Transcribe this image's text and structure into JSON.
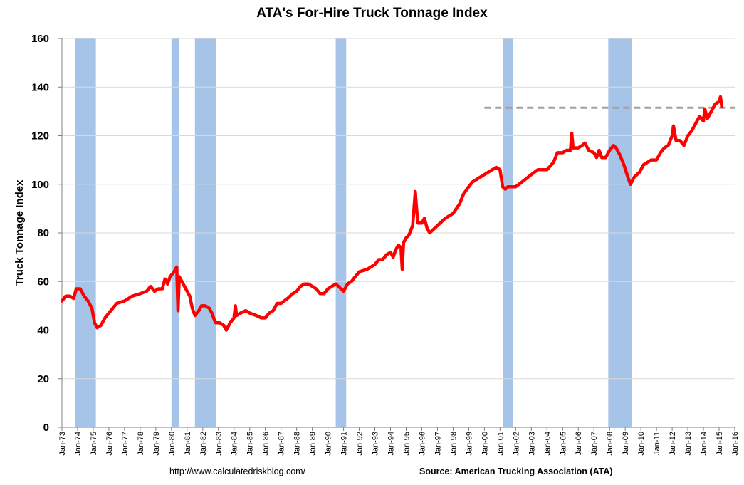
{
  "chart_data": {
    "type": "line",
    "title": "ATA's For-Hire Truck Tonnage Index",
    "ylabel": "Truck Tonnage Index",
    "xlabel": "",
    "ylim": [
      0,
      160
    ],
    "yticks": [
      0,
      20,
      40,
      60,
      80,
      100,
      120,
      140,
      160
    ],
    "grid": true,
    "xticks": [
      "Jan-73",
      "Jan-74",
      "Jan-75",
      "Jan-76",
      "Jan-77",
      "Jan-78",
      "Jan-79",
      "Jan-80",
      "Jan-81",
      "Jan-82",
      "Jan-83",
      "Jan-84",
      "Jan-85",
      "Jan-86",
      "Jan-87",
      "Jan-88",
      "Jan-89",
      "Jan-90",
      "Jan-91",
      "Jan-92",
      "Jan-93",
      "Jan-94",
      "Jan-95",
      "Jan-96",
      "Jan-97",
      "Jan-98",
      "Jan-99",
      "Jan-00",
      "Jan-01",
      "Jan-02",
      "Jan-03",
      "Jan-04",
      "Jan-05",
      "Jan-06",
      "Jan-07",
      "Jan-08",
      "Jan-09",
      "Jan-10",
      "Jan-11",
      "Jan-12",
      "Jan-13",
      "Jan-14",
      "Jan-15",
      "Jan-16"
    ],
    "xlim": [
      "1973-01",
      "2016-01"
    ],
    "recession_color": "#a6c4e8",
    "recessions": [
      [
        "1973-11",
        "1975-03"
      ],
      [
        "1980-01",
        "1980-07"
      ],
      [
        "1981-07",
        "1982-11"
      ],
      [
        "1990-07",
        "1991-03"
      ],
      [
        "2001-03",
        "2001-11"
      ],
      [
        "2007-12",
        "2009-06"
      ]
    ],
    "reference_line": {
      "y": 131.5,
      "start": "2000-01",
      "end": "2016-01",
      "style": "dashed",
      "color": "#a0a0a0"
    },
    "series": [
      {
        "color": "#ff0000",
        "points": [
          [
            "1973-01",
            52
          ],
          [
            "1973-04",
            54
          ],
          [
            "1973-07",
            54
          ],
          [
            "1973-10",
            53
          ],
          [
            "1973-12",
            57
          ],
          [
            "1974-03",
            57
          ],
          [
            "1974-06",
            54
          ],
          [
            "1974-09",
            52
          ],
          [
            "1974-12",
            49
          ],
          [
            "1975-02",
            43
          ],
          [
            "1975-04",
            41
          ],
          [
            "1975-07",
            42
          ],
          [
            "1975-10",
            45
          ],
          [
            "1976-01",
            47
          ],
          [
            "1976-04",
            49
          ],
          [
            "1976-07",
            51
          ],
          [
            "1977-01",
            52
          ],
          [
            "1977-07",
            54
          ],
          [
            "1978-01",
            55
          ],
          [
            "1978-06",
            56
          ],
          [
            "1978-09",
            58
          ],
          [
            "1978-12",
            56
          ],
          [
            "1979-03",
            57
          ],
          [
            "1979-06",
            57
          ],
          [
            "1979-08",
            61
          ],
          [
            "1979-10",
            59
          ],
          [
            "1979-12",
            62
          ],
          [
            "1980-03",
            64
          ],
          [
            "1980-05",
            66
          ],
          [
            "1980-06",
            48
          ],
          [
            "1980-07",
            62
          ],
          [
            "1980-09",
            60
          ],
          [
            "1980-12",
            57
          ],
          [
            "1981-03",
            54
          ],
          [
            "1981-05",
            49
          ],
          [
            "1981-07",
            46
          ],
          [
            "1981-10",
            48
          ],
          [
            "1981-12",
            50
          ],
          [
            "1982-03",
            50
          ],
          [
            "1982-06",
            49
          ],
          [
            "1982-08",
            47
          ],
          [
            "1982-10",
            44
          ],
          [
            "1982-11",
            43
          ],
          [
            "1983-02",
            43
          ],
          [
            "1983-05",
            42
          ],
          [
            "1983-07",
            40
          ],
          [
            "1983-10",
            43
          ],
          [
            "1984-01",
            45
          ],
          [
            "1984-02",
            50
          ],
          [
            "1984-03",
            46
          ],
          [
            "1984-06",
            47
          ],
          [
            "1984-10",
            48
          ],
          [
            "1985-01",
            47
          ],
          [
            "1985-06",
            46
          ],
          [
            "1985-10",
            45
          ],
          [
            "1986-01",
            45
          ],
          [
            "1986-04",
            47
          ],
          [
            "1986-07",
            48
          ],
          [
            "1986-10",
            51
          ],
          [
            "1987-01",
            51
          ],
          [
            "1987-06",
            53
          ],
          [
            "1987-10",
            55
          ],
          [
            "1988-01",
            56
          ],
          [
            "1988-04",
            58
          ],
          [
            "1988-07",
            59
          ],
          [
            "1988-10",
            59
          ],
          [
            "1989-01",
            58
          ],
          [
            "1989-04",
            57
          ],
          [
            "1989-07",
            55
          ],
          [
            "1989-10",
            55
          ],
          [
            "1990-01",
            57
          ],
          [
            "1990-04",
            58
          ],
          [
            "1990-07",
            59
          ],
          [
            "1990-09",
            58
          ],
          [
            "1991-01",
            56
          ],
          [
            "1991-04",
            59
          ],
          [
            "1991-07",
            60
          ],
          [
            "1992-01",
            64
          ],
          [
            "1992-07",
            65
          ],
          [
            "1993-01",
            67
          ],
          [
            "1993-04",
            69
          ],
          [
            "1993-07",
            69
          ],
          [
            "1993-10",
            71
          ],
          [
            "1994-01",
            72
          ],
          [
            "1994-03",
            70
          ],
          [
            "1994-05",
            73
          ],
          [
            "1994-07",
            75
          ],
          [
            "1994-09",
            74
          ],
          [
            "1994-10",
            65
          ],
          [
            "1994-11",
            76
          ],
          [
            "1995-01",
            78
          ],
          [
            "1995-03",
            79
          ],
          [
            "1995-06",
            83
          ],
          [
            "1995-08",
            97
          ],
          [
            "1995-09",
            90
          ],
          [
            "1995-10",
            84
          ],
          [
            "1996-01",
            84
          ],
          [
            "1996-03",
            86
          ],
          [
            "1996-05",
            82
          ],
          [
            "1996-07",
            80
          ],
          [
            "1997-01",
            83
          ],
          [
            "1997-07",
            86
          ],
          [
            "1998-01",
            88
          ],
          [
            "1998-06",
            92
          ],
          [
            "1998-09",
            96
          ],
          [
            "1999-01",
            99
          ],
          [
            "1999-04",
            101
          ],
          [
            "1999-07",
            102
          ],
          [
            "2000-01",
            104
          ],
          [
            "2000-04",
            105
          ],
          [
            "2000-07",
            106
          ],
          [
            "2000-10",
            107
          ],
          [
            "2001-01",
            106
          ],
          [
            "2001-03",
            99
          ],
          [
            "2001-05",
            98
          ],
          [
            "2001-07",
            99
          ],
          [
            "2001-10",
            99
          ],
          [
            "2002-01",
            99
          ],
          [
            "2002-06",
            101
          ],
          [
            "2003-01",
            104
          ],
          [
            "2003-06",
            106
          ],
          [
            "2004-01",
            106
          ],
          [
            "2004-06",
            109
          ],
          [
            "2004-09",
            113
          ],
          [
            "2005-01",
            113
          ],
          [
            "2005-04",
            114
          ],
          [
            "2005-07",
            114
          ],
          [
            "2005-08",
            121
          ],
          [
            "2005-09",
            115
          ],
          [
            "2006-01",
            115
          ],
          [
            "2006-04",
            116
          ],
          [
            "2006-06",
            117
          ],
          [
            "2006-09",
            114
          ],
          [
            "2007-01",
            113
          ],
          [
            "2007-03",
            111
          ],
          [
            "2007-05",
            114
          ],
          [
            "2007-07",
            111
          ],
          [
            "2007-10",
            111
          ],
          [
            "2008-01",
            114
          ],
          [
            "2008-04",
            116
          ],
          [
            "2008-06",
            115
          ],
          [
            "2008-09",
            112
          ],
          [
            "2008-12",
            108
          ],
          [
            "2009-03",
            103
          ],
          [
            "2009-05",
            100
          ],
          [
            "2009-08",
            103
          ],
          [
            "2009-12",
            105
          ],
          [
            "2010-03",
            108
          ],
          [
            "2010-06",
            109
          ],
          [
            "2010-09",
            110
          ],
          [
            "2011-01",
            110
          ],
          [
            "2011-04",
            113
          ],
          [
            "2011-07",
            115
          ],
          [
            "2011-10",
            116
          ],
          [
            "2012-01",
            120
          ],
          [
            "2012-02",
            124
          ],
          [
            "2012-04",
            118
          ],
          [
            "2012-07",
            118
          ],
          [
            "2012-10",
            116
          ],
          [
            "2013-01",
            120
          ],
          [
            "2013-04",
            122
          ],
          [
            "2013-07",
            125
          ],
          [
            "2013-10",
            128
          ],
          [
            "2014-01",
            126
          ],
          [
            "2014-02",
            131
          ],
          [
            "2014-04",
            127
          ],
          [
            "2014-07",
            130
          ],
          [
            "2014-10",
            133
          ],
          [
            "2015-01",
            134
          ],
          [
            "2015-02",
            136
          ],
          [
            "2015-03",
            132
          ]
        ]
      }
    ]
  },
  "footer": {
    "url": "http://www.calculatedriskblog.com/",
    "source": "Source: American Trucking Association (ATA)"
  }
}
